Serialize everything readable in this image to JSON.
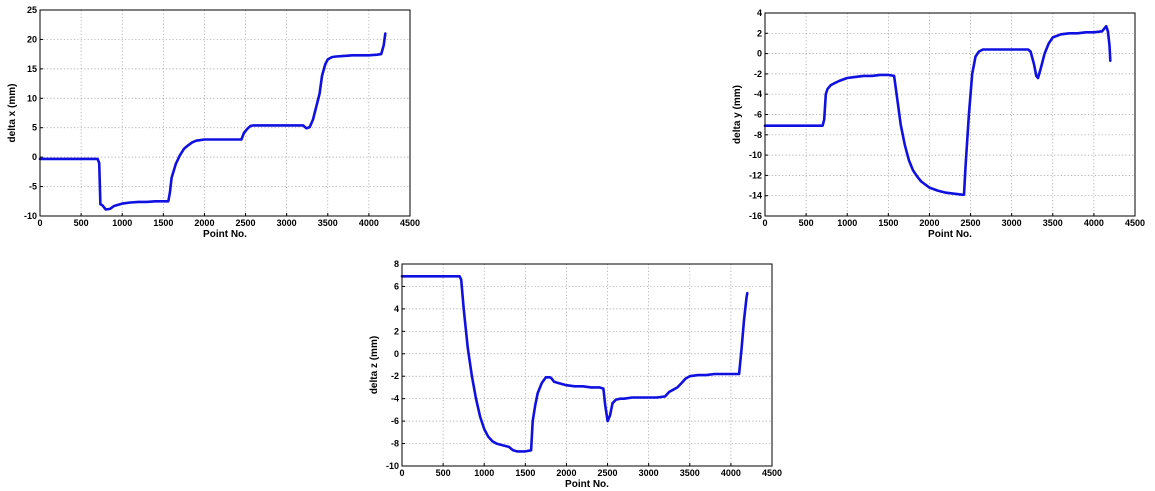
{
  "chart_data": [
    {
      "type": "line",
      "xlabel": "Point No.",
      "ylabel": "delta x (mm)",
      "xlim": [
        0,
        4500
      ],
      "ylim": [
        -10,
        25
      ],
      "xticks": [
        "0",
        "500",
        "1000",
        "1500",
        "2000",
        "2500",
        "3000",
        "3500",
        "4000",
        "4500"
      ],
      "yticks": [
        "-10",
        "-5",
        "0",
        "5",
        "10",
        "15",
        "20",
        "25"
      ],
      "grid": true,
      "color": "#1010e0",
      "series": [
        {
          "x": [
            0,
            700,
            720,
            735,
            760,
            800,
            850,
            900,
            1000,
            1100,
            1200,
            1300,
            1400,
            1560,
            1580,
            1600,
            1650,
            1700,
            1750,
            1800,
            1850,
            1900,
            2000,
            2100,
            2200,
            2300,
            2450,
            2480,
            2520,
            2560,
            2600,
            2700,
            3000,
            3200,
            3240,
            3280,
            3320,
            3350,
            3400,
            3430,
            3470,
            3500,
            3550,
            3600,
            3700,
            3800,
            3900,
            4000,
            4100,
            4150,
            4180,
            4200
          ],
          "y": [
            -0.3,
            -0.3,
            -1.0,
            -8.0,
            -8.2,
            -8.9,
            -8.8,
            -8.3,
            -7.9,
            -7.7,
            -7.6,
            -7.6,
            -7.5,
            -7.5,
            -6.0,
            -3.5,
            -1.2,
            0.3,
            1.4,
            2.0,
            2.5,
            2.8,
            3.0,
            3.0,
            3.0,
            3.0,
            3.0,
            4.1,
            4.8,
            5.3,
            5.4,
            5.4,
            5.4,
            5.4,
            4.9,
            5.1,
            6.4,
            8.0,
            10.8,
            13.8,
            15.8,
            16.6,
            17.0,
            17.1,
            17.2,
            17.3,
            17.3,
            17.3,
            17.4,
            17.5,
            19.0,
            21.0
          ]
        }
      ]
    },
    {
      "type": "line",
      "xlabel": "Point No.",
      "ylabel": "delta y (mm)",
      "xlim": [
        0,
        4500
      ],
      "ylim": [
        -16,
        4
      ],
      "xticks": [
        "0",
        "500",
        "1000",
        "1500",
        "2000",
        "2500",
        "3000",
        "3500",
        "4000",
        "4500"
      ],
      "yticks": [
        "-16",
        "-14",
        "-12",
        "-10",
        "-8",
        "-6",
        "-4",
        "-2",
        "0",
        "2",
        "4"
      ],
      "grid": true,
      "color": "#1010e0",
      "series": [
        {
          "x": [
            0,
            700,
            720,
            740,
            760,
            800,
            850,
            900,
            1000,
            1100,
            1200,
            1300,
            1400,
            1500,
            1570,
            1600,
            1650,
            1700,
            1750,
            1800,
            1850,
            1900,
            2000,
            2100,
            2200,
            2300,
            2400,
            2420,
            2440,
            2480,
            2520,
            2560,
            2600,
            2650,
            2700,
            2800,
            2900,
            3000,
            3100,
            3200,
            3230,
            3270,
            3300,
            3320,
            3350,
            3400,
            3450,
            3500,
            3600,
            3700,
            3800,
            3900,
            4000,
            4100,
            4130,
            4150,
            4170,
            4190,
            4200
          ],
          "y": [
            -7.1,
            -7.1,
            -6.5,
            -4.0,
            -3.5,
            -3.1,
            -2.9,
            -2.7,
            -2.4,
            -2.3,
            -2.2,
            -2.2,
            -2.1,
            -2.1,
            -2.2,
            -4.0,
            -7.0,
            -9.0,
            -10.5,
            -11.5,
            -12.1,
            -12.6,
            -13.2,
            -13.5,
            -13.7,
            -13.8,
            -13.9,
            -13.9,
            -11.0,
            -6.0,
            -2.0,
            -0.3,
            0.2,
            0.4,
            0.4,
            0.4,
            0.4,
            0.4,
            0.4,
            0.4,
            0.2,
            -1.0,
            -2.2,
            -2.4,
            -1.6,
            0.0,
            1.0,
            1.6,
            1.9,
            2.0,
            2.0,
            2.1,
            2.1,
            2.2,
            2.5,
            2.7,
            2.2,
            0.8,
            -0.7
          ]
        }
      ]
    },
    {
      "type": "line",
      "xlabel": "Point No.",
      "ylabel": "delta z (mm)",
      "xlim": [
        0,
        4500
      ],
      "ylim": [
        -10,
        8
      ],
      "xticks": [
        "0",
        "500",
        "1000",
        "1500",
        "2000",
        "2500",
        "3000",
        "3500",
        "4000",
        "4500"
      ],
      "yticks": [
        "-10",
        "-8",
        "-6",
        "-4",
        "-2",
        "0",
        "2",
        "4",
        "6",
        "8"
      ],
      "grid": true,
      "color": "#1010e0",
      "series": [
        {
          "x": [
            0,
            700,
            720,
            750,
            800,
            850,
            900,
            950,
            1000,
            1050,
            1100,
            1150,
            1200,
            1300,
            1350,
            1400,
            1500,
            1570,
            1590,
            1620,
            1650,
            1700,
            1750,
            1800,
            1820,
            1850,
            1900,
            1950,
            2000,
            2100,
            2200,
            2300,
            2400,
            2450,
            2470,
            2500,
            2530,
            2560,
            2600,
            2650,
            2700,
            2800,
            3000,
            3100,
            3200,
            3250,
            3300,
            3350,
            3400,
            3450,
            3500,
            3600,
            3700,
            3800,
            3900,
            4000,
            4100,
            4130,
            4160,
            4190,
            4200
          ],
          "y": [
            6.9,
            6.9,
            6.6,
            4.0,
            0.5,
            -2.0,
            -4.0,
            -5.6,
            -6.7,
            -7.4,
            -7.8,
            -8.0,
            -8.1,
            -8.3,
            -8.6,
            -8.7,
            -8.7,
            -8.6,
            -6.0,
            -4.6,
            -3.5,
            -2.6,
            -2.1,
            -2.1,
            -2.2,
            -2.5,
            -2.6,
            -2.7,
            -2.8,
            -2.9,
            -2.9,
            -3.0,
            -3.0,
            -3.1,
            -4.5,
            -6.0,
            -5.5,
            -4.4,
            -4.1,
            -4.0,
            -4.0,
            -3.9,
            -3.9,
            -3.9,
            -3.8,
            -3.4,
            -3.2,
            -3.0,
            -2.6,
            -2.2,
            -2.0,
            -1.9,
            -1.9,
            -1.8,
            -1.8,
            -1.8,
            -1.8,
            0.5,
            3.0,
            5.0,
            5.4
          ]
        }
      ]
    }
  ]
}
